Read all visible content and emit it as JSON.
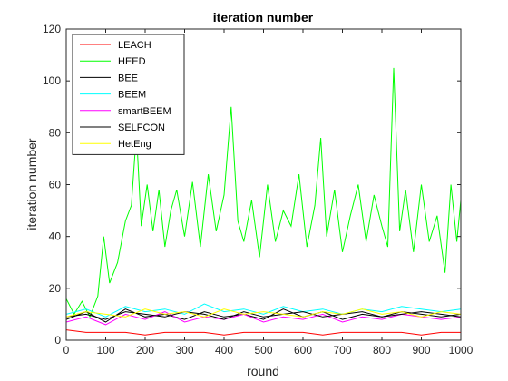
{
  "chart_data": {
    "type": "line",
    "title": "iteration number",
    "xlabel": "round",
    "ylabel": "iteration number",
    "xlim": [
      0,
      1000
    ],
    "ylim": [
      0,
      120
    ],
    "x_ticks": [
      0,
      100,
      200,
      300,
      400,
      500,
      600,
      700,
      800,
      900,
      1000
    ],
    "y_ticks": [
      0,
      20,
      40,
      60,
      80,
      100,
      120
    ],
    "grid": false,
    "legend_position": "top-left",
    "series": [
      {
        "name": "LEACH",
        "color": "#ff0000",
        "x": [
          0,
          50,
          100,
          150,
          200,
          250,
          300,
          350,
          400,
          450,
          500,
          550,
          600,
          650,
          700,
          750,
          800,
          850,
          900,
          950,
          1000
        ],
        "values": [
          4,
          3,
          3,
          3,
          2,
          3,
          3,
          3,
          2,
          3,
          3,
          3,
          3,
          2,
          3,
          3,
          3,
          3,
          2,
          3,
          3
        ]
      },
      {
        "name": "HEED",
        "color": "#00ff00",
        "x": [
          0,
          20,
          40,
          60,
          80,
          95,
          110,
          130,
          150,
          165,
          178,
          190,
          205,
          220,
          235,
          250,
          265,
          280,
          300,
          320,
          340,
          360,
          380,
          400,
          418,
          435,
          450,
          470,
          490,
          510,
          530,
          550,
          570,
          590,
          610,
          630,
          645,
          660,
          680,
          700,
          720,
          740,
          760,
          780,
          800,
          815,
          830,
          845,
          860,
          880,
          900,
          920,
          940,
          960,
          975,
          990,
          1000
        ],
        "values": [
          16,
          10,
          15,
          9,
          17,
          40,
          22,
          30,
          46,
          52,
          80,
          44,
          60,
          42,
          58,
          36,
          50,
          58,
          40,
          61,
          36,
          64,
          42,
          56,
          90,
          46,
          38,
          54,
          32,
          60,
          38,
          50,
          44,
          64,
          36,
          52,
          78,
          40,
          58,
          34,
          48,
          60,
          38,
          56,
          44,
          36,
          105,
          42,
          58,
          34,
          60,
          38,
          48,
          26,
          60,
          38,
          54
        ]
      },
      {
        "name": "BEE",
        "color": "#000000",
        "x": [
          0,
          50,
          100,
          150,
          200,
          250,
          300,
          350,
          400,
          450,
          500,
          550,
          600,
          650,
          700,
          750,
          800,
          850,
          900,
          950,
          1000
        ],
        "values": [
          8,
          11,
          7,
          12,
          9,
          10,
          8,
          11,
          9,
          10,
          8,
          12,
          9,
          11,
          8,
          10,
          9,
          11,
          10,
          9,
          10
        ]
      },
      {
        "name": "BEEM",
        "color": "#00ffff",
        "x": [
          0,
          50,
          100,
          150,
          200,
          250,
          300,
          350,
          400,
          450,
          500,
          550,
          600,
          650,
          700,
          750,
          800,
          850,
          900,
          950,
          1000
        ],
        "values": [
          10,
          12,
          9,
          13,
          11,
          12,
          10,
          14,
          11,
          12,
          10,
          13,
          11,
          12,
          10,
          12,
          11,
          13,
          12,
          11,
          12
        ]
      },
      {
        "name": "smartBEEM",
        "color": "#ff00ff",
        "x": [
          0,
          50,
          100,
          150,
          200,
          250,
          300,
          350,
          400,
          450,
          500,
          550,
          600,
          650,
          700,
          750,
          800,
          850,
          900,
          950,
          1000
        ],
        "values": [
          7,
          9,
          6,
          10,
          8,
          11,
          7,
          9,
          8,
          10,
          7,
          9,
          8,
          10,
          7,
          9,
          8,
          10,
          9,
          8,
          9
        ]
      },
      {
        "name": "SELFCON",
        "color": "#000000",
        "x": [
          0,
          50,
          100,
          150,
          200,
          250,
          300,
          350,
          400,
          450,
          500,
          550,
          600,
          650,
          700,
          750,
          800,
          850,
          900,
          950,
          1000
        ],
        "values": [
          9,
          10,
          8,
          11,
          10,
          9,
          11,
          10,
          8,
          11,
          9,
          10,
          11,
          9,
          10,
          11,
          9,
          10,
          11,
          10,
          9
        ]
      },
      {
        "name": "HetEng",
        "color": "#ffff00",
        "x": [
          0,
          50,
          100,
          150,
          200,
          250,
          300,
          350,
          400,
          450,
          500,
          550,
          600,
          650,
          700,
          750,
          800,
          850,
          900,
          950,
          1000
        ],
        "values": [
          9,
          11,
          10,
          9,
          12,
          10,
          11,
          9,
          12,
          10,
          11,
          10,
          9,
          11,
          10,
          12,
          10,
          11,
          9,
          11,
          10
        ]
      }
    ]
  }
}
